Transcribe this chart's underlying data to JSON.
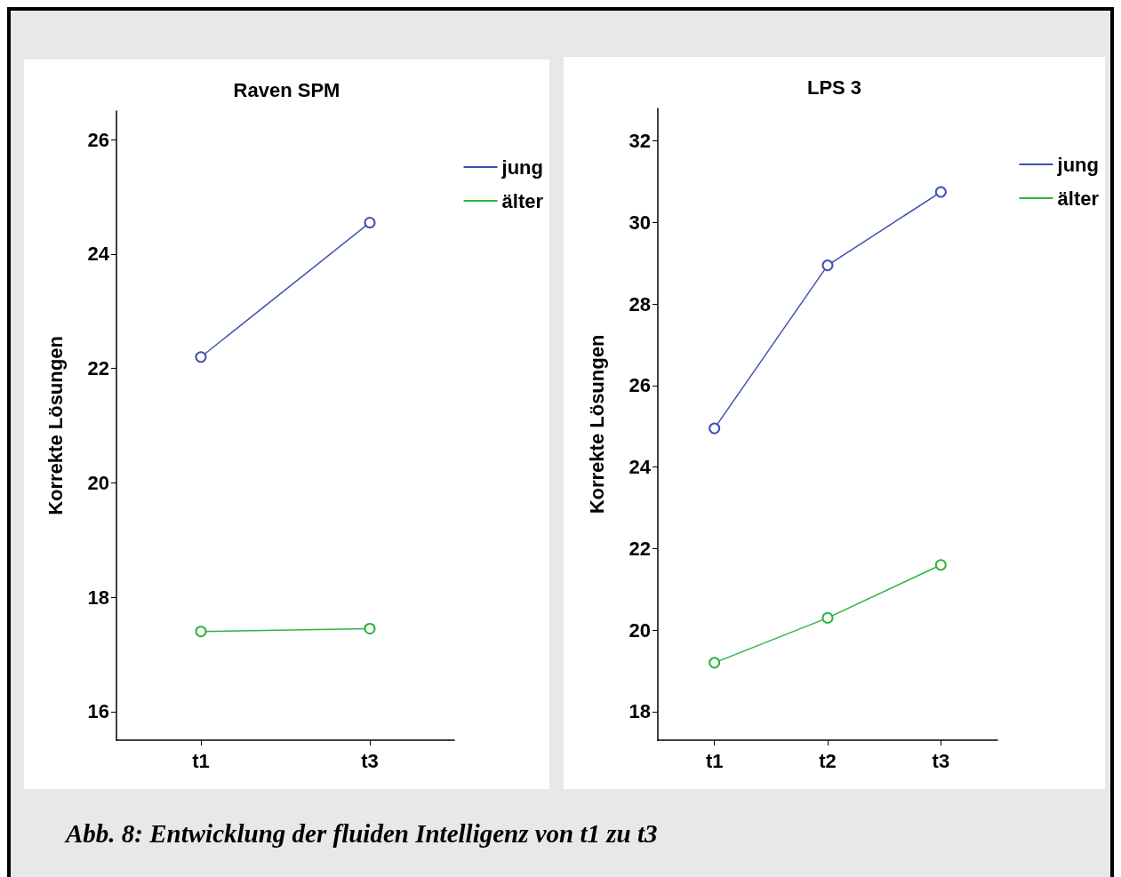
{
  "chart_data": [
    {
      "type": "line",
      "title": "Raven SPM",
      "ylabel": "Korrekte Lösungen",
      "categories": [
        "t1",
        "t3"
      ],
      "series": [
        {
          "name": "jung",
          "color": "#3f51b1",
          "values": [
            22.2,
            24.55
          ]
        },
        {
          "name": "älter",
          "color": "#2db53d",
          "values": [
            17.4,
            17.45
          ]
        }
      ],
      "ylim": [
        15.5,
        26.5
      ],
      "yticks": [
        16,
        18,
        20,
        22,
        24,
        26
      ],
      "grid": false,
      "legend": "top right",
      "marker": "circle",
      "line_style": "solid",
      "annotations": [
        "Abb. 8: Entwicklung der fluiden Intelligenz von t1 zu t3"
      ]
    },
    {
      "type": "line",
      "title": "LPS 3",
      "ylabel": "Korrekte Lösungen",
      "categories": [
        "t1",
        "t2",
        "t3"
      ],
      "series": [
        {
          "name": "jung",
          "color": "#3f51b1",
          "values": [
            24.95,
            28.95,
            30.75
          ]
        },
        {
          "name": "älter",
          "color": "#2db53d",
          "values": [
            19.2,
            20.3,
            21.6
          ]
        }
      ],
      "ylim": [
        17.3,
        32.8
      ],
      "yticks": [
        18,
        20,
        22,
        24,
        26,
        28,
        30,
        32
      ],
      "grid": false,
      "legend": "top right",
      "marker": "circle",
      "line_style": "solid"
    }
  ]
}
